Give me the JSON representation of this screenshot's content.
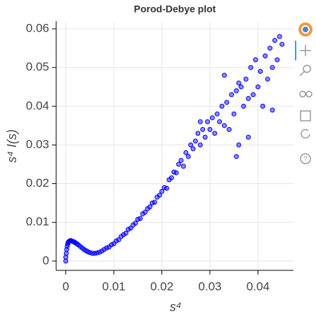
{
  "chart_data": {
    "type": "scatter",
    "title": "Porod-Debye plot",
    "xlabel": "s⁴",
    "ylabel": "s⁴ I(s)",
    "color": "#0000ff",
    "x": [
      0,
      0,
      0.0001,
      0.0002,
      0.0003,
      0.0004,
      0.0005,
      0.0006,
      0.0008,
      0.001,
      0.0012,
      0.0014,
      0.0016,
      0.0018,
      0.002,
      0.0023,
      0.0026,
      0.003,
      0.0034,
      0.0038,
      0.0042,
      0.0046,
      0.005,
      0.0055,
      0.006,
      0.0065,
      0.007,
      0.0075,
      0.008,
      0.0085,
      0.009,
      0.0095,
      0.01,
      0.0105,
      0.011,
      0.0115,
      0.012,
      0.0125,
      0.013,
      0.0135,
      0.014,
      0.0145,
      0.015,
      0.0155,
      0.016,
      0.0165,
      0.017,
      0.0175,
      0.018,
      0.0185,
      0.019,
      0.0195,
      0.02,
      0.0205,
      0.021,
      0.0215,
      0.022,
      0.0225,
      0.023,
      0.0235,
      0.024,
      0.0245,
      0.025,
      0.0255,
      0.026,
      0.0265,
      0.027,
      0.0275,
      0.028,
      0.0285,
      0.029,
      0.0295,
      0.03,
      0.0305,
      0.031,
      0.0315,
      0.032,
      0.0325,
      0.033,
      0.0335,
      0.034,
      0.0345,
      0.035,
      0.0355,
      0.036,
      0.0365,
      0.037,
      0.0375,
      0.038,
      0.0385,
      0.039,
      0.0395,
      0.04,
      0.0405,
      0.041,
      0.0415,
      0.042,
      0.0425,
      0.043,
      0.0435,
      0.044,
      0.0445,
      0.045,
      0.033,
      0.036,
      0.028,
      0.038,
      0.043,
      0.0355
    ],
    "values": [
      0,
      0.001,
      0.002,
      0.003,
      0.0038,
      0.0044,
      0.0048,
      0.005,
      0.0052,
      0.0053,
      0.0052,
      0.0051,
      0.005,
      0.0049,
      0.0047,
      0.0045,
      0.0042,
      0.0038,
      0.0034,
      0.003,
      0.0027,
      0.0024,
      0.0022,
      0.002,
      0.002,
      0.0021,
      0.0023,
      0.0026,
      0.003,
      0.0034,
      0.0036,
      0.0042,
      0.0045,
      0.0052,
      0.0055,
      0.0063,
      0.0068,
      0.0072,
      0.0082,
      0.0085,
      0.0093,
      0.0098,
      0.0108,
      0.011,
      0.0122,
      0.0126,
      0.0135,
      0.014,
      0.015,
      0.0152,
      0.0165,
      0.017,
      0.018,
      0.019,
      0.0188,
      0.021,
      0.0215,
      0.023,
      0.0228,
      0.025,
      0.026,
      0.0245,
      0.028,
      0.027,
      0.03,
      0.029,
      0.031,
      0.033,
      0.03,
      0.034,
      0.032,
      0.036,
      0.034,
      0.037,
      0.033,
      0.038,
      0.036,
      0.04,
      0.035,
      0.041,
      0.034,
      0.043,
      0.038,
      0.044,
      0.03,
      0.045,
      0.04,
      0.047,
      0.042,
      0.05,
      0.043,
      0.052,
      0.045,
      0.049,
      0.04,
      0.053,
      0.047,
      0.055,
      0.05,
      0.057,
      0.052,
      0.058,
      0.056,
      0.048,
      0.046,
      0.036,
      0.032,
      0.039,
      0.027
    ],
    "xlim": [
      -0.002,
      0.0474
    ],
    "ylim": [
      -0.0024,
      0.062
    ],
    "xticks": [
      0,
      0.01,
      0.02,
      0.03,
      0.04
    ],
    "yticks": [
      0,
      0.01,
      0.02,
      0.03,
      0.04,
      0.05,
      0.06
    ],
    "grid": true
  }
}
